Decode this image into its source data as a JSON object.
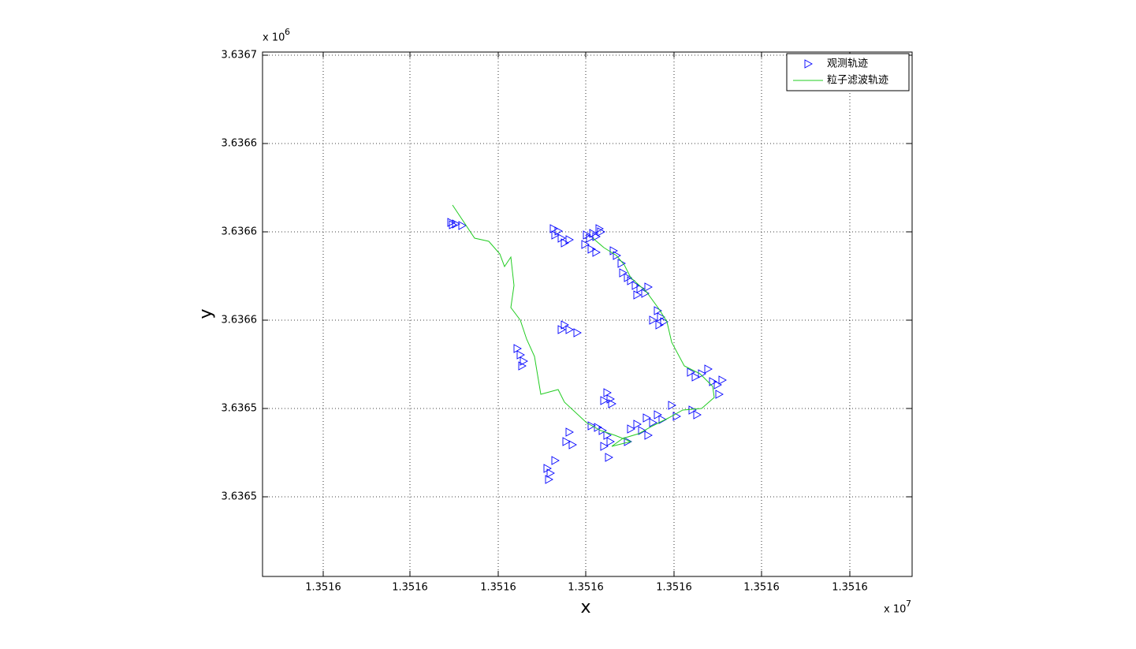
{
  "chart_data": {
    "type": "scatter",
    "xlabel": "x",
    "ylabel": "y",
    "x_multiplier": "x 10",
    "x_exponent": "7",
    "y_multiplier": "x 10",
    "y_exponent": "6",
    "grid": true,
    "legend": "upper right",
    "xlim": [
      13515583,
      13516407
    ],
    "ylim": [
      3636494.75,
      3636661
    ],
    "xticks": [
      {
        "value": 13515660,
        "label": "1.3516"
      },
      {
        "value": 13515770,
        "label": "1.3516"
      },
      {
        "value": 13515882,
        "label": "1.3516"
      },
      {
        "value": 13515993,
        "label": "1.3516"
      },
      {
        "value": 13516105,
        "label": "1.3516"
      },
      {
        "value": 13516216,
        "label": "1.3516"
      },
      {
        "value": 13516328,
        "label": "1.3516"
      }
    ],
    "yticks": [
      {
        "value": 3636660,
        "label": "3.6367"
      },
      {
        "value": 3636632,
        "label": "3.6366"
      },
      {
        "value": 3636604,
        "label": "3.6366"
      },
      {
        "value": 3636576,
        "label": "3.6366"
      },
      {
        "value": 3636548,
        "label": "3.6365"
      },
      {
        "value": 3636520,
        "label": "3.6365"
      }
    ],
    "series": [
      {
        "name": "观测轨迹",
        "mode": "markers",
        "marker": "triangle-right",
        "color": "#0000ff",
        "x": [
          13515822,
          13515828,
          13515836,
          13515824,
          13515952,
          13515958,
          13515954,
          13515962,
          13515966,
          13515972,
          13515994,
          13515998,
          13516002,
          13516006,
          13516010,
          13515992,
          13516000,
          13516006,
          13516012,
          13516028,
          13516032,
          13516038,
          13516040,
          13516046,
          13516050,
          13516056,
          13516062,
          13516068,
          13516058,
          13516072,
          13516084,
          13516088,
          13516092,
          13516078,
          13516086,
          13515966,
          13515972,
          13515982,
          13515962,
          13515906,
          13515910,
          13515914,
          13515912,
          13516126,
          13516132,
          13516140,
          13516148,
          13516154,
          13516160,
          13516166,
          13516162,
          13516020,
          13516024,
          13516016,
          13516026,
          13516102,
          13516108,
          13516128,
          13516134,
          13516000,
          13516008,
          13516014,
          13516020,
          13516024,
          13516016,
          13516022,
          13516050,
          13516058,
          13516064,
          13516070,
          13516078,
          13516084,
          13516090,
          13516072,
          13516046,
          13515972,
          13515968,
          13515976,
          13515944,
          13515948,
          13515954,
          13515946
        ],
        "values": [
          3636607,
          3636606.5,
          3636606,
          3636606.25,
          3636605,
          3636604.25,
          3636603,
          3636602,
          3636600.5,
          3636601.5,
          3636603,
          3636602,
          3636603.5,
          3636602.5,
          3636605,
          3636600,
          3636598.5,
          3636597.5,
          3636604,
          3636598,
          3636596.5,
          3636594,
          3636591,
          3636589.5,
          3636588.5,
          3636587,
          3636586,
          3636584.5,
          3636584,
          3636586.5,
          3636579,
          3636577,
          3636575.5,
          3636576,
          3636574.5,
          3636574.5,
          3636573,
          3636572,
          3636573,
          3636567,
          3636565,
          3636563,
          3636561.5,
          3636559.5,
          3636558,
          3636559,
          3636560.5,
          3636556.5,
          3636555.5,
          3636557,
          3636552.5,
          3636553,
          3636551,
          3636550.5,
          3636549.5,
          3636549,
          3636545.5,
          3636547.5,
          3636546,
          3636542.5,
          3636542,
          3636541,
          3636539.5,
          3636537.5,
          3636536,
          3636532.5,
          3636541.5,
          3636543,
          3636541,
          3636545,
          3636543.5,
          3636546,
          3636544.5,
          3636539.5,
          3636537.5,
          3636540.5,
          3636537.5,
          3636536.5,
          3636529,
          3636527.5,
          3636531.5,
          3636525.5
        ]
      },
      {
        "name": "粒子滤波轨迹",
        "mode": "line",
        "color": "#22cc22",
        "x": [
          13515824,
          13515852,
          13515870,
          13515884,
          13515890,
          13515898,
          13515902,
          13515898,
          13515910,
          13515918,
          13515928,
          13515936,
          13515958,
          13515966,
          13515994,
          13516012,
          13516030,
          13516050,
          13516026,
          13516040,
          13516060,
          13516078,
          13516098,
          13516116,
          13516140,
          13516156,
          13516154,
          13516138,
          13516118,
          13516102,
          13516096,
          13516086,
          13516070,
          13516050,
          13516042,
          13516032,
          13516016,
          13516002
        ],
        "values": [
          3636612.5,
          3636602,
          3636601,
          3636597,
          3636593,
          3636596,
          3636587,
          3636580,
          3636576,
          3636570,
          3636564.5,
          3636552.5,
          3636554,
          3636550,
          3636543.5,
          3636541,
          3636539.5,
          3636537.5,
          3636536,
          3636538.5,
          3636540,
          3636542.5,
          3636545,
          3636547.5,
          3636548,
          3636551.5,
          3636555,
          3636559,
          3636561.5,
          3636569,
          3636575.5,
          3636579.5,
          3636585,
          3636589.5,
          3636593.5,
          3636596.5,
          3636599,
          3636602
        ]
      }
    ]
  }
}
